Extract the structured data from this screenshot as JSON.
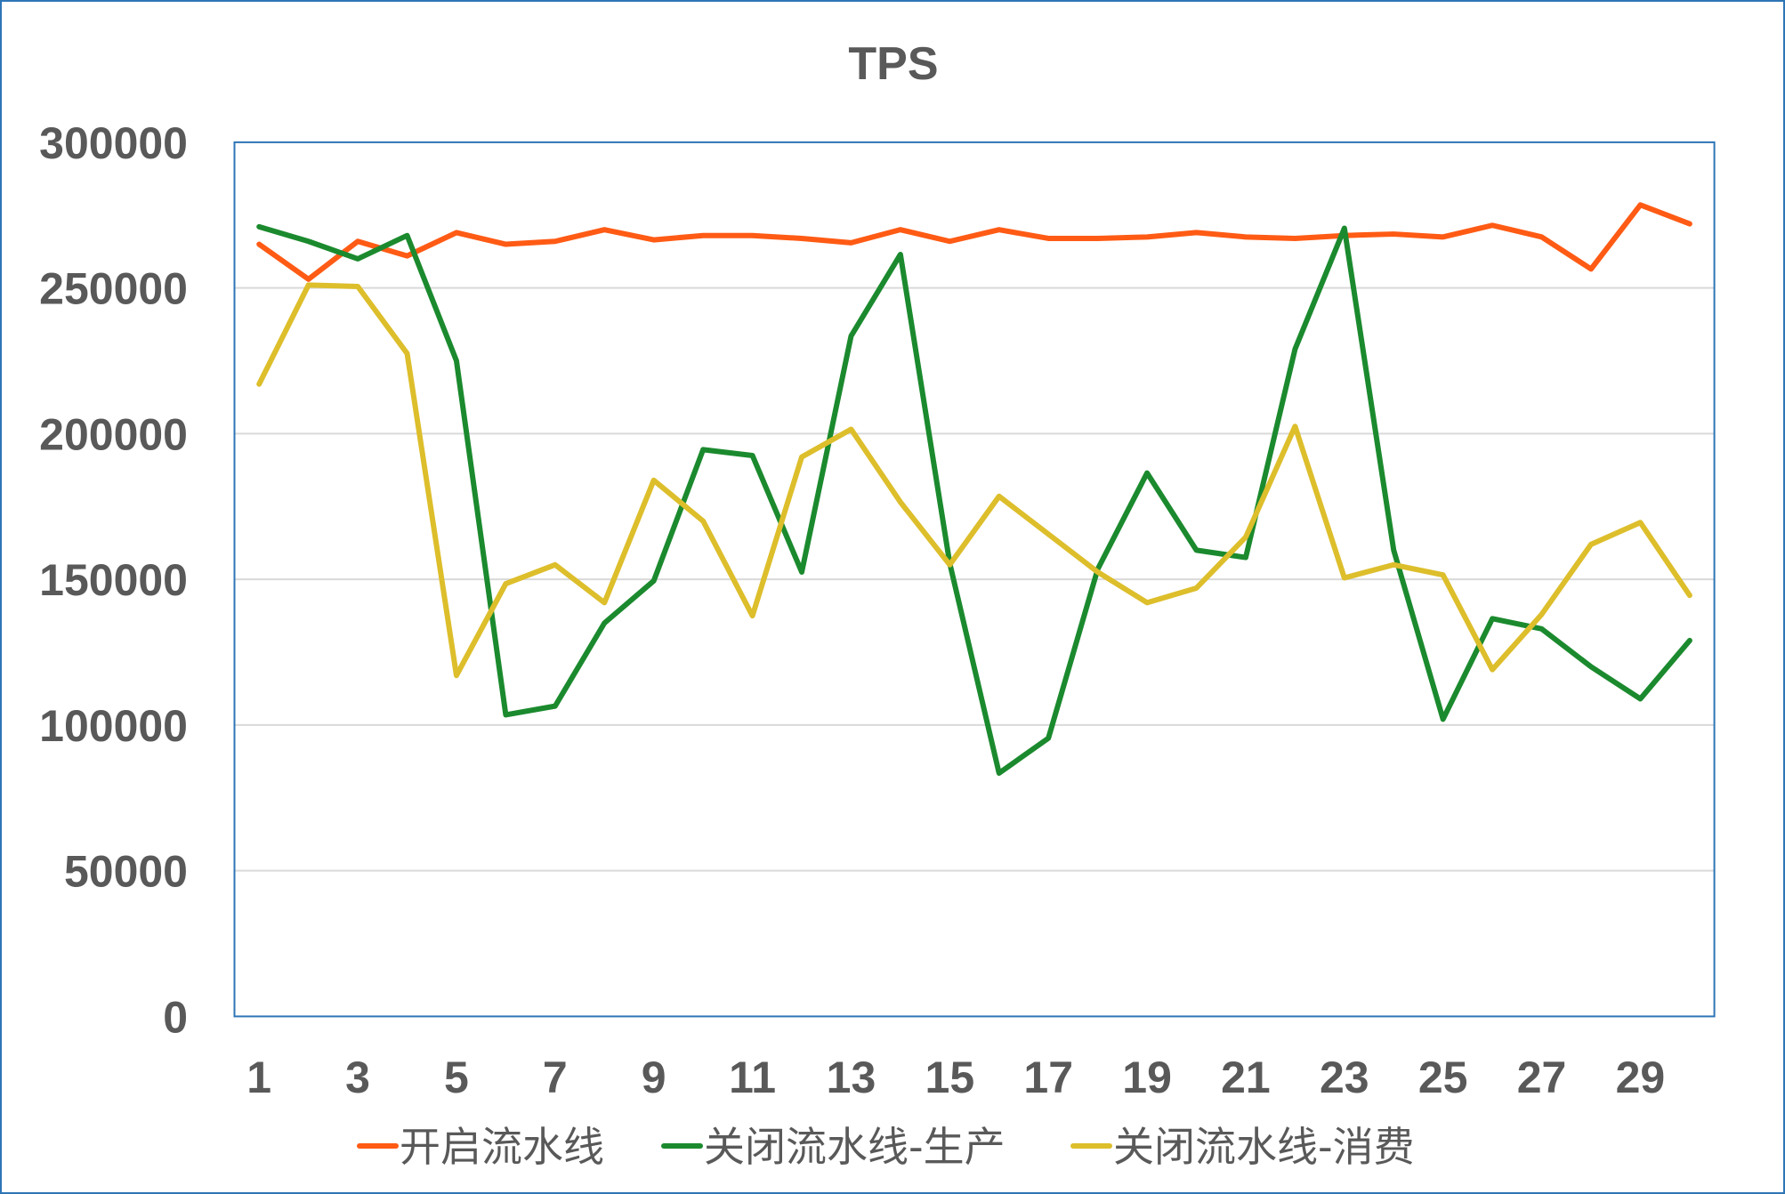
{
  "chart_data": {
    "type": "line",
    "title": "TPS",
    "xlabel": "",
    "ylabel": "",
    "x": [
      1,
      2,
      3,
      4,
      5,
      6,
      7,
      8,
      9,
      10,
      11,
      12,
      13,
      14,
      15,
      16,
      17,
      18,
      19,
      20,
      21,
      22,
      23,
      24,
      25,
      26,
      27,
      28,
      29,
      30
    ],
    "xticks": [
      "1",
      "3",
      "5",
      "7",
      "9",
      "11",
      "13",
      "15",
      "17",
      "19",
      "21",
      "23",
      "25",
      "27",
      "29"
    ],
    "yticks": [
      "0",
      "50000",
      "100000",
      "150000",
      "200000",
      "250000",
      "300000"
    ],
    "ylim": [
      0,
      300000
    ],
    "grid": true,
    "legend": "bottom",
    "series": [
      {
        "name": "开启流水线",
        "color": "#FF5B15",
        "values": [
          265000,
          253000,
          266000,
          261000,
          269000,
          265000,
          266000,
          270000,
          266500,
          268000,
          268000,
          267000,
          265500,
          270000,
          266000,
          270000,
          267000,
          267000,
          267500,
          269000,
          267500,
          267000,
          268000,
          268500,
          267500,
          271500,
          267500,
          256500,
          278500,
          272000
        ]
      },
      {
        "name": "关闭流水线-生产",
        "color": "#1B8A2E",
        "values": [
          271000,
          266000,
          260000,
          268000,
          225000,
          103500,
          106500,
          135000,
          149500,
          194500,
          192500,
          152500,
          233500,
          261500,
          155500,
          83500,
          95500,
          153500,
          186500,
          160000,
          157500,
          229000,
          270500,
          160000,
          102000,
          136500,
          133000,
          120000,
          109000,
          129000
        ]
      },
      {
        "name": "关闭流水线-消费",
        "color": "#DDBE2B",
        "values": [
          217000,
          251000,
          250500,
          227500,
          117000,
          148500,
          155000,
          142000,
          184000,
          170000,
          137500,
          192000,
          201500,
          176500,
          155000,
          178500,
          165500,
          152500,
          142000,
          147000,
          164500,
          202500,
          150500,
          155000,
          151500,
          119000,
          138000,
          162000,
          169500,
          144500
        ]
      }
    ]
  },
  "colors": {
    "border": "#2E75B6",
    "grid": "#D9D9D9",
    "text": "#595959"
  }
}
